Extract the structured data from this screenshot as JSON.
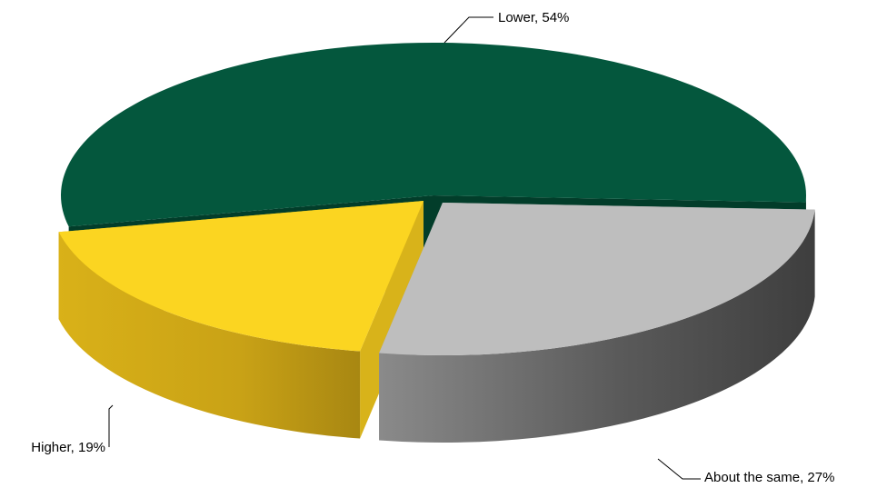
{
  "chart_data": {
    "type": "pie",
    "style": "3d-exploded",
    "title": "",
    "slices": [
      {
        "label": "Lower",
        "value": 54,
        "display": "Lower, 54%",
        "color": "#04573D"
      },
      {
        "label": "About the same",
        "value": 27,
        "display": "About the same, 27%",
        "color": "#BEBEBE"
      },
      {
        "label": "Higher",
        "value": 19,
        "display": "Higher, 19%",
        "color": "#FBD521"
      }
    ],
    "legend": "none"
  }
}
